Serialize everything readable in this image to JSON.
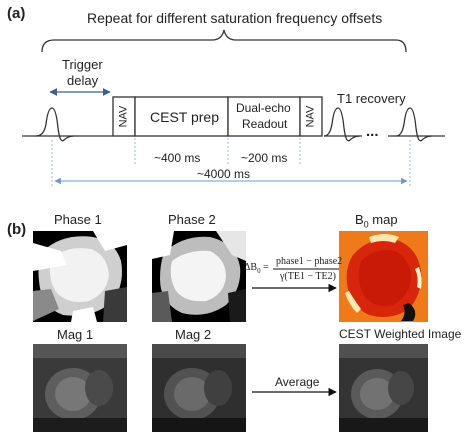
{
  "panel_a": {
    "letter": "(a)",
    "repeat_label": "Repeat for different saturation frequency offsets",
    "trigger_label_line1": "Trigger",
    "trigger_label_line2": "delay",
    "nav_left": "NAV",
    "cest_prep": "CEST prep",
    "readout_line1": "Dual-echo",
    "readout_line2": "Readout",
    "nav_right": "NAV",
    "t1_recovery": "T1 recovery",
    "ellipsis": "...",
    "dur_cest": "~400 ms",
    "dur_readout": "~200 ms",
    "dur_total": "~4000 ms"
  },
  "panel_b": {
    "letter": "(b)",
    "phase1": "Phase 1",
    "phase2": "Phase 2",
    "b0map_main": "B",
    "b0map_sub": "0",
    "b0map_rest": " map",
    "formula_lhs": "ΔB",
    "formula_lhs_sub": "0",
    "formula_eq": " =",
    "formula_num": "phase1 − phase2",
    "formula_den": "γ(TE1 − TE2)",
    "mag1": "Mag 1",
    "mag2": "Mag 2",
    "cest_weighted": "CEST Weighted Image",
    "average": "Average"
  },
  "colors": {
    "line": "#2d2d2d",
    "dashed": "#9ab8d8",
    "arrow_blue": "#6a9cd0",
    "b0_orange": "#f07a18"
  }
}
